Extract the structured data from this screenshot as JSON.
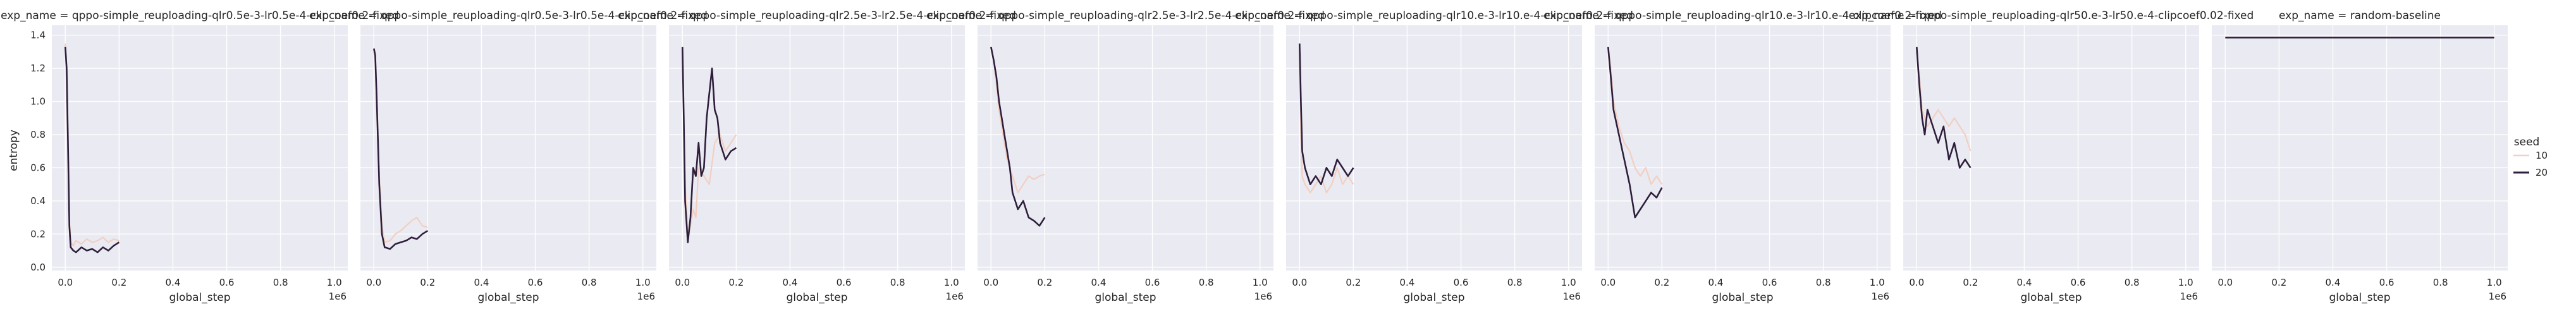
{
  "figure": {
    "ylabel": "entropy",
    "xlabel": "global_step",
    "x_offset_label": "1e6",
    "x_tick_labels": [
      "0.0",
      "0.2",
      "0.4",
      "0.6",
      "0.8",
      "1.0"
    ],
    "y_tick_labels": [
      "0.0",
      "0.2",
      "0.4",
      "0.6",
      "0.8",
      "1.0",
      "1.2",
      "1.4"
    ],
    "colors": {
      "background": "#EAEAF2",
      "grid": "#FFFFFF",
      "seed_10": "#F2CFC2",
      "seed_20": "#2E1E3B"
    }
  },
  "legend": {
    "title": "seed",
    "entries": [
      {
        "label": "10",
        "color": "#F2CFC2"
      },
      {
        "label": "20",
        "color": "#2E1E3B"
      }
    ],
    "placement": "right"
  },
  "chart_data": [
    {
      "type": "line",
      "title": "exp_name = qppo-simple_reuploading-qlr0.5e-3-lr0.5e-4-clipcoef0.2-fixed",
      "xlim": [
        -0.05,
        1.05
      ],
      "ylim": [
        -0.02,
        1.46
      ],
      "series": [
        {
          "name": "10",
          "x": [
            0.0,
            0.005,
            0.01,
            0.015,
            0.02,
            0.03,
            0.04,
            0.06,
            0.08,
            0.1,
            0.12,
            0.14,
            0.16,
            0.18,
            0.2
          ],
          "y": [
            1.35,
            1.1,
            0.65,
            0.3,
            0.15,
            0.13,
            0.16,
            0.14,
            0.17,
            0.15,
            0.16,
            0.18,
            0.15,
            0.17,
            0.16
          ]
        },
        {
          "name": "20",
          "x": [
            0.0,
            0.005,
            0.01,
            0.015,
            0.02,
            0.03,
            0.04,
            0.06,
            0.08,
            0.1,
            0.12,
            0.14,
            0.16,
            0.18,
            0.2
          ],
          "y": [
            1.33,
            1.2,
            0.75,
            0.25,
            0.12,
            0.1,
            0.09,
            0.12,
            0.1,
            0.11,
            0.09,
            0.12,
            0.1,
            0.13,
            0.15
          ]
        }
      ]
    },
    {
      "type": "line",
      "title": "exp_name = qppo-simple_reuploading-qlr0.5e-3-lr0.5e-4-clipcoef0.2-fixed",
      "xlim": [
        -0.05,
        1.05
      ],
      "ylim": [
        -0.02,
        1.46
      ],
      "series": [
        {
          "name": "10",
          "x": [
            0.0,
            0.005,
            0.01,
            0.02,
            0.03,
            0.04,
            0.06,
            0.08,
            0.1,
            0.12,
            0.14,
            0.16,
            0.18,
            0.2
          ],
          "y": [
            1.32,
            1.25,
            1.0,
            0.55,
            0.25,
            0.15,
            0.16,
            0.2,
            0.22,
            0.25,
            0.28,
            0.3,
            0.25,
            0.24
          ]
        },
        {
          "name": "20",
          "x": [
            0.0,
            0.005,
            0.01,
            0.02,
            0.03,
            0.04,
            0.06,
            0.08,
            0.1,
            0.12,
            0.14,
            0.16,
            0.18,
            0.2
          ],
          "y": [
            1.32,
            1.28,
            1.05,
            0.5,
            0.2,
            0.12,
            0.11,
            0.14,
            0.15,
            0.16,
            0.18,
            0.17,
            0.2,
            0.22
          ]
        }
      ]
    },
    {
      "type": "line",
      "title": "exp_name = qppo-simple_reuploading-qlr2.5e-3-lr2.5e-4-clipcoef0.2-fixed",
      "xlim": [
        -0.05,
        1.05
      ],
      "ylim": [
        -0.02,
        1.46
      ],
      "series": [
        {
          "name": "10",
          "x": [
            0.0,
            0.01,
            0.02,
            0.03,
            0.04,
            0.05,
            0.06,
            0.08,
            0.1,
            0.12,
            0.14,
            0.16,
            0.18,
            0.2
          ],
          "y": [
            1.3,
            0.5,
            0.2,
            0.25,
            0.35,
            0.3,
            0.6,
            0.55,
            0.5,
            0.75,
            0.8,
            0.7,
            0.75,
            0.8
          ]
        },
        {
          "name": "20",
          "x": [
            0.0,
            0.005,
            0.01,
            0.02,
            0.03,
            0.04,
            0.05,
            0.06,
            0.07,
            0.08,
            0.09,
            0.1,
            0.11,
            0.12,
            0.13,
            0.14,
            0.16,
            0.18,
            0.2
          ],
          "y": [
            1.33,
            0.9,
            0.4,
            0.15,
            0.3,
            0.6,
            0.55,
            0.75,
            0.55,
            0.6,
            0.9,
            1.05,
            1.2,
            0.95,
            0.9,
            0.75,
            0.65,
            0.7,
            0.72
          ]
        }
      ]
    },
    {
      "type": "line",
      "title": "exp_name = qppo-simple_reuploading-qlr2.5e-3-lr2.5e-4-clipcoef0.2-fixed",
      "xlim": [
        -0.05,
        1.05
      ],
      "ylim": [
        -0.02,
        1.46
      ],
      "series": [
        {
          "name": "10",
          "x": [
            0.0,
            0.01,
            0.02,
            0.03,
            0.04,
            0.05,
            0.06,
            0.08,
            0.1,
            0.12,
            0.14,
            0.16,
            0.18,
            0.2
          ],
          "y": [
            1.32,
            1.25,
            1.1,
            0.95,
            0.85,
            0.75,
            0.65,
            0.55,
            0.45,
            0.5,
            0.55,
            0.53,
            0.55,
            0.56
          ]
        },
        {
          "name": "20",
          "x": [
            0.0,
            0.01,
            0.02,
            0.03,
            0.04,
            0.05,
            0.06,
            0.07,
            0.08,
            0.09,
            0.1,
            0.12,
            0.14,
            0.16,
            0.18,
            0.2
          ],
          "y": [
            1.33,
            1.25,
            1.15,
            1.0,
            0.9,
            0.8,
            0.7,
            0.6,
            0.45,
            0.4,
            0.35,
            0.4,
            0.3,
            0.28,
            0.25,
            0.3
          ]
        }
      ]
    },
    {
      "type": "line",
      "title": "exp_name = qppo-simple_reuploading-qlr10.e-3-lr10.e-4-clipcoef0.2-fixed",
      "xlim": [
        -0.05,
        1.05
      ],
      "ylim": [
        -0.02,
        1.46
      ],
      "series": [
        {
          "name": "10",
          "x": [
            0.0,
            0.005,
            0.01,
            0.02,
            0.04,
            0.06,
            0.08,
            0.1,
            0.12,
            0.14,
            0.16,
            0.18,
            0.2
          ],
          "y": [
            1.3,
            0.8,
            0.55,
            0.5,
            0.45,
            0.5,
            0.55,
            0.45,
            0.5,
            0.6,
            0.5,
            0.55,
            0.5
          ]
        },
        {
          "name": "20",
          "x": [
            0.0,
            0.005,
            0.01,
            0.02,
            0.03,
            0.04,
            0.06,
            0.08,
            0.1,
            0.12,
            0.14,
            0.16,
            0.18,
            0.2
          ],
          "y": [
            1.35,
            1.0,
            0.7,
            0.6,
            0.55,
            0.5,
            0.55,
            0.5,
            0.6,
            0.55,
            0.65,
            0.6,
            0.55,
            0.6
          ]
        }
      ]
    },
    {
      "type": "line",
      "title": "exp_name = qppo-simple_reuploading-qlr10.e-3-lr10.e-4-clipcoef0.2-fixed",
      "xlim": [
        -0.05,
        1.05
      ],
      "ylim": [
        -0.02,
        1.46
      ],
      "series": [
        {
          "name": "10",
          "x": [
            0.0,
            0.01,
            0.02,
            0.04,
            0.06,
            0.08,
            0.1,
            0.12,
            0.14,
            0.16,
            0.18,
            0.2
          ],
          "y": [
            1.3,
            1.2,
            1.0,
            0.85,
            0.75,
            0.7,
            0.6,
            0.55,
            0.6,
            0.5,
            0.55,
            0.5
          ]
        },
        {
          "name": "20",
          "x": [
            0.0,
            0.01,
            0.02,
            0.04,
            0.06,
            0.08,
            0.1,
            0.12,
            0.14,
            0.16,
            0.18,
            0.2
          ],
          "y": [
            1.33,
            1.15,
            0.95,
            0.8,
            0.65,
            0.5,
            0.3,
            0.35,
            0.4,
            0.45,
            0.42,
            0.48
          ]
        }
      ]
    },
    {
      "type": "line",
      "title": "exp_name = qppo-simple_reuploading-qlr50.e-3-lr50.e-4-clipcoef0.02-fixed",
      "xlim": [
        -0.05,
        1.05
      ],
      "ylim": [
        -0.02,
        1.46
      ],
      "series": [
        {
          "name": "10",
          "x": [
            0.0,
            0.01,
            0.02,
            0.04,
            0.06,
            0.08,
            0.1,
            0.12,
            0.14,
            0.16,
            0.18,
            0.2
          ],
          "y": [
            1.3,
            1.15,
            0.95,
            0.85,
            0.9,
            0.95,
            0.9,
            0.85,
            0.9,
            0.85,
            0.8,
            0.7
          ]
        },
        {
          "name": "20",
          "x": [
            0.0,
            0.01,
            0.02,
            0.03,
            0.04,
            0.06,
            0.08,
            0.1,
            0.12,
            0.14,
            0.16,
            0.18,
            0.2
          ],
          "y": [
            1.33,
            1.1,
            0.9,
            0.8,
            0.95,
            0.85,
            0.75,
            0.85,
            0.65,
            0.75,
            0.6,
            0.65,
            0.6
          ]
        }
      ]
    },
    {
      "type": "line",
      "title": "exp_name = random-baseline",
      "xlim": [
        -0.05,
        1.05
      ],
      "ylim": [
        -0.02,
        1.46
      ],
      "series": [
        {
          "name": "20",
          "x": [
            0.0,
            0.2,
            0.4,
            0.6,
            0.8,
            1.0
          ],
          "y": [
            1.386,
            1.386,
            1.386,
            1.386,
            1.386,
            1.386
          ]
        }
      ]
    }
  ]
}
